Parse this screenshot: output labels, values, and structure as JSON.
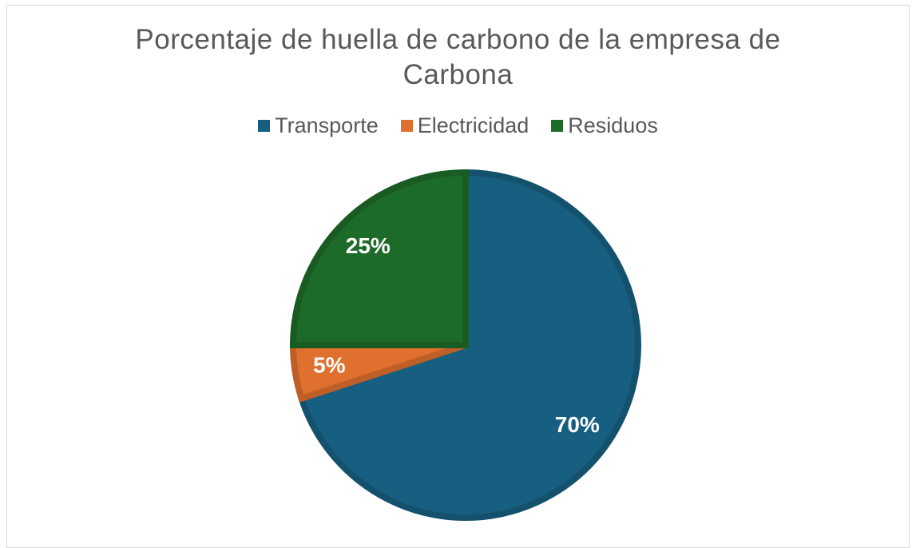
{
  "chart_data": {
    "type": "pie",
    "title": "Porcentaje de huella de carbono de la empresa de Carbona",
    "categories": [
      "Transporte",
      "Electricidad",
      "Residuos"
    ],
    "values": [
      70,
      5,
      25
    ],
    "value_labels": [
      "70%",
      "5%",
      "25%"
    ],
    "colors": [
      "#175f80",
      "#e0702e",
      "#1d6b28"
    ],
    "legend": "top"
  }
}
